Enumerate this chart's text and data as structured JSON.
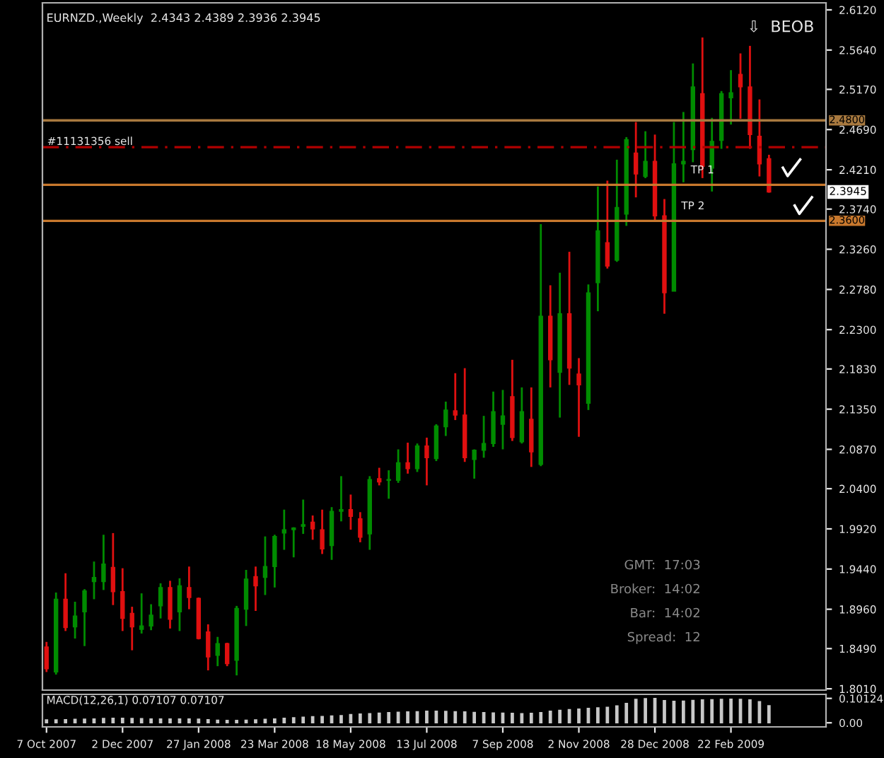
{
  "chart_data": [
    {
      "type": "candlestick",
      "title": "EURNZD.,Weekly  2.4343 2.4389 2.3936 2.3945",
      "x": [
        "2007-10-07",
        "2007-10-14",
        "2007-10-21",
        "2007-10-28",
        "2007-11-04",
        "2007-11-11",
        "2007-11-18",
        "2007-11-25",
        "2007-12-02",
        "2007-12-09",
        "2007-12-16",
        "2007-12-23",
        "2007-12-30",
        "2008-01-06",
        "2008-01-13",
        "2008-01-20",
        "2008-01-27",
        "2008-02-03",
        "2008-02-10",
        "2008-02-17",
        "2008-02-24",
        "2008-03-02",
        "2008-03-09",
        "2008-03-16",
        "2008-03-23",
        "2008-03-30",
        "2008-04-06",
        "2008-04-13",
        "2008-04-20",
        "2008-04-27",
        "2008-05-04",
        "2008-05-11",
        "2008-05-18",
        "2008-05-25",
        "2008-06-01",
        "2008-06-08",
        "2008-06-15",
        "2008-06-22",
        "2008-06-29",
        "2008-07-06",
        "2008-07-13",
        "2008-07-20",
        "2008-07-27",
        "2008-08-03",
        "2008-08-10",
        "2008-08-17",
        "2008-08-24",
        "2008-08-31",
        "2008-09-07",
        "2008-09-14",
        "2008-09-21",
        "2008-09-28",
        "2008-10-05",
        "2008-10-12",
        "2008-10-19",
        "2008-10-26",
        "2008-11-02",
        "2008-11-09",
        "2008-11-16",
        "2008-11-23",
        "2008-11-30",
        "2008-12-07",
        "2008-12-14",
        "2008-12-21",
        "2008-12-28",
        "2009-01-04",
        "2009-01-11",
        "2009-01-18",
        "2009-01-25",
        "2009-02-01",
        "2009-02-08",
        "2009-02-15",
        "2009-02-22",
        "2009-03-01",
        "2009-03-08",
        "2009-03-15",
        "2009-03-22"
      ],
      "ohlc": [
        [
          1.851,
          1.857,
          1.821,
          1.825
        ],
        [
          1.821,
          1.916,
          1.818,
          1.908
        ],
        [
          1.908,
          1.939,
          1.87,
          1.874
        ],
        [
          1.875,
          1.905,
          1.861,
          1.888
        ],
        [
          1.893,
          1.92,
          1.852,
          1.918
        ],
        [
          1.929,
          1.953,
          1.908,
          1.934
        ],
        [
          1.929,
          1.985,
          1.919,
          1.95
        ],
        [
          1.946,
          1.987,
          1.901,
          1.917
        ],
        [
          1.917,
          1.945,
          1.87,
          1.885
        ],
        [
          1.891,
          1.899,
          1.847,
          1.875
        ],
        [
          1.872,
          1.915,
          1.867,
          1.876
        ],
        [
          1.876,
          1.902,
          1.871,
          1.889
        ],
        [
          1.9,
          1.927,
          1.885,
          1.922
        ],
        [
          1.922,
          1.93,
          1.873,
          1.884
        ],
        [
          1.893,
          1.933,
          1.87,
          1.924
        ],
        [
          1.922,
          1.947,
          1.896,
          1.91
        ],
        [
          1.909,
          1.91,
          1.86,
          1.861
        ],
        [
          1.869,
          1.878,
          1.823,
          1.839
        ],
        [
          1.841,
          1.863,
          1.828,
          1.855
        ],
        [
          1.855,
          1.856,
          1.828,
          1.831
        ],
        [
          1.835,
          1.9,
          1.817,
          1.897
        ],
        [
          1.896,
          1.943,
          1.876,
          1.932
        ],
        [
          1.935,
          1.947,
          1.894,
          1.924
        ],
        [
          1.934,
          1.983,
          1.913,
          1.947
        ],
        [
          1.947,
          1.985,
          1.922,
          1.983
        ],
        [
          1.987,
          2.015,
          1.967,
          1.991
        ],
        [
          1.991,
          1.994,
          1.958,
          1.993
        ],
        [
          1.995,
          2.027,
          1.986,
          1.997
        ],
        [
          2.0,
          2.008,
          1.979,
          1.992
        ],
        [
          1.991,
          2.015,
          1.962,
          1.968
        ],
        [
          1.972,
          2.018,
          1.955,
          2.013
        ],
        [
          2.013,
          2.055,
          2.001,
          2.015
        ],
        [
          2.015,
          2.033,
          1.991,
          2.007
        ],
        [
          2.004,
          2.012,
          1.976,
          1.982
        ],
        [
          1.986,
          2.055,
          1.967,
          2.051
        ],
        [
          2.052,
          2.065,
          2.044,
          2.048
        ],
        [
          2.05,
          2.062,
          2.028,
          2.051
        ],
        [
          2.05,
          2.087,
          2.047,
          2.071
        ],
        [
          2.071,
          2.095,
          2.058,
          2.064
        ],
        [
          2.064,
          2.094,
          2.06,
          2.091
        ],
        [
          2.091,
          2.101,
          2.044,
          2.077
        ],
        [
          2.076,
          2.117,
          2.073,
          2.115
        ],
        [
          2.114,
          2.144,
          2.103,
          2.134
        ],
        [
          2.133,
          2.178,
          2.122,
          2.128
        ],
        [
          2.128,
          2.184,
          2.072,
          2.077
        ],
        [
          2.075,
          2.087,
          2.052,
          2.086
        ],
        [
          2.086,
          2.127,
          2.077,
          2.094
        ],
        [
          2.094,
          2.156,
          2.09,
          2.132
        ],
        [
          2.117,
          2.158,
          2.087,
          2.127
        ],
        [
          2.15,
          2.194,
          2.097,
          2.101
        ],
        [
          2.096,
          2.161,
          2.094,
          2.132
        ],
        [
          2.123,
          2.161,
          2.066,
          2.084
        ],
        [
          2.069,
          2.356,
          2.067,
          2.246
        ],
        [
          2.246,
          2.283,
          2.161,
          2.194
        ],
        [
          2.179,
          2.298,
          2.125,
          2.249
        ],
        [
          2.249,
          2.323,
          2.164,
          2.184
        ],
        [
          2.177,
          2.196,
          2.102,
          2.164
        ],
        [
          2.142,
          2.284,
          2.134,
          2.274
        ],
        [
          2.286,
          2.401,
          2.252,
          2.348
        ],
        [
          2.334,
          2.408,
          2.303,
          2.306
        ],
        [
          2.313,
          2.433,
          2.311,
          2.376
        ],
        [
          2.368,
          2.46,
          2.354,
          2.457
        ],
        [
          2.441,
          2.478,
          2.388,
          2.416
        ],
        [
          2.413,
          2.467,
          2.411,
          2.431
        ],
        [
          2.431,
          2.463,
          2.36,
          2.366
        ],
        [
          2.366,
          2.386,
          2.249,
          2.274
        ],
        [
          2.276,
          2.478,
          2.276,
          2.428
        ],
        [
          2.428,
          2.49,
          2.406,
          2.431
        ],
        [
          2.445,
          2.548,
          2.43,
          2.52
        ],
        [
          2.512,
          2.579,
          2.411,
          2.425
        ],
        [
          2.423,
          2.483,
          2.395,
          2.455
        ],
        [
          2.456,
          2.515,
          2.446,
          2.512
        ],
        [
          2.507,
          2.54,
          2.475,
          2.513
        ],
        [
          2.535,
          2.56,
          2.482,
          2.52
        ],
        [
          2.52,
          2.569,
          2.446,
          2.463
        ],
        [
          2.461,
          2.505,
          2.413,
          2.428
        ],
        [
          2.4343,
          2.4389,
          2.3936,
          2.3945
        ]
      ],
      "colors": [
        "#e01010",
        "#008c00",
        "#e01010",
        "#008c00",
        "#008c00",
        "#008c00",
        "#008c00",
        "#e01010",
        "#e01010",
        "#e01010",
        "#008c00",
        "#008c00",
        "#008c00",
        "#e01010",
        "#008c00",
        "#e01010",
        "#e01010",
        "#e01010",
        "#008c00",
        "#e01010",
        "#008c00",
        "#008c00",
        "#e01010",
        "#008c00",
        "#008c00",
        "#008c00",
        "#008c00",
        "#008c00",
        "#e01010",
        "#e01010",
        "#008c00",
        "#008c00",
        "#e01010",
        "#e01010",
        "#008c00",
        "#e01010",
        "#008c00",
        "#008c00",
        "#e01010",
        "#008c00",
        "#e01010",
        "#008c00",
        "#008c00",
        "#e01010",
        "#e01010",
        "#008c00",
        "#008c00",
        "#008c00",
        "#008c00",
        "#e01010",
        "#008c00",
        "#e01010",
        "#008c00",
        "#e01010",
        "#008c00",
        "#e01010",
        "#e01010",
        "#008c00",
        "#008c00",
        "#e01010",
        "#008c00",
        "#008c00",
        "#e01010",
        "#008c00",
        "#e01010",
        "#e01010",
        "#008c00",
        "#008c00",
        "#008c00",
        "#e01010",
        "#008c00",
        "#008c00",
        "#008c00",
        "#e01010",
        "#e01010",
        "#e01010",
        "#e01010"
      ],
      "xlim": [
        "2007-10-04",
        "2009-05-03"
      ],
      "ylim": [
        1.7994,
        2.6204
      ],
      "yticks": [
        {
          "value": 1.801,
          "label": "1.8010"
        },
        {
          "value": 1.849,
          "label": "1.8490"
        },
        {
          "value": 1.896,
          "label": "1.8960"
        },
        {
          "value": 1.944,
          "label": "1.9440"
        },
        {
          "value": 1.992,
          "label": "1.9920"
        },
        {
          "value": 2.04,
          "label": "2.0400"
        },
        {
          "value": 2.087,
          "label": "2.0870"
        },
        {
          "value": 2.135,
          "label": "2.1350"
        },
        {
          "value": 2.183,
          "label": "2.1830"
        },
        {
          "value": 2.23,
          "label": "2.2300"
        },
        {
          "value": 2.278,
          "label": "2.2780"
        },
        {
          "value": 2.326,
          "label": "2.3260"
        },
        {
          "value": 2.374,
          "label": "2.3740"
        },
        {
          "value": 2.421,
          "label": "2.4210"
        },
        {
          "value": 2.469,
          "label": "2.4690"
        },
        {
          "value": 2.517,
          "label": "2.5170"
        },
        {
          "value": 2.564,
          "label": "2.5640"
        },
        {
          "value": 2.612,
          "label": "2.6120"
        }
      ],
      "tick_labels": "y",
      "grid": false,
      "legend": false,
      "ref_lines": [
        {
          "axis": "y",
          "value": 2.48,
          "label": "2.4800",
          "color": "#a8793f"
        },
        {
          "axis": "y",
          "value": 2.448,
          "label": "#11131356 sell",
          "color": "#b00000",
          "line_style": "dashed"
        },
        {
          "axis": "y",
          "value": 2.403,
          "color": "#c8782d"
        },
        {
          "axis": "y",
          "value": 2.36,
          "label": "2.3600",
          "color": "#c8782d"
        }
      ],
      "annotations": [
        "⇩  BEOB",
        "GMT:  17:03",
        "Broker:  14:02",
        "Bar:  14:02",
        "Spread:  12",
        {
          "text": "TP 1",
          "x": "2009-02-01",
          "y": 2.407
        },
        {
          "text": "TP 2",
          "x": "2009-01-25",
          "y": 2.364
        },
        {
          "text": "2.3945",
          "y": 2.3945
        }
      ]
    },
    {
      "type": "bar",
      "title": "MACD(12,26,1) 0.07107 0.07107",
      "x": [
        "2007-10-07",
        "2007-10-14",
        "2007-10-21",
        "2007-10-28",
        "2007-11-04",
        "2007-11-11",
        "2007-11-18",
        "2007-11-25",
        "2007-12-02",
        "2007-12-09",
        "2007-12-16",
        "2007-12-23",
        "2007-12-30",
        "2008-01-06",
        "2008-01-13",
        "2008-01-20",
        "2008-01-27",
        "2008-02-03",
        "2008-02-10",
        "2008-02-17",
        "2008-02-24",
        "2008-03-02",
        "2008-03-09",
        "2008-03-16",
        "2008-03-23",
        "2008-03-30",
        "2008-04-06",
        "2008-04-13",
        "2008-04-20",
        "2008-04-27",
        "2008-05-04",
        "2008-05-11",
        "2008-05-18",
        "2008-05-25",
        "2008-06-01",
        "2008-06-08",
        "2008-06-15",
        "2008-06-22",
        "2008-06-29",
        "2008-07-06",
        "2008-07-13",
        "2008-07-20",
        "2008-07-27",
        "2008-08-03",
        "2008-08-10",
        "2008-08-17",
        "2008-08-24",
        "2008-08-31",
        "2008-09-07",
        "2008-09-14",
        "2008-09-21",
        "2008-09-28",
        "2008-10-05",
        "2008-10-12",
        "2008-10-19",
        "2008-10-26",
        "2008-11-02",
        "2008-11-09",
        "2008-11-16",
        "2008-11-23",
        "2008-11-30",
        "2008-12-07",
        "2008-12-14",
        "2008-12-21",
        "2008-12-28",
        "2009-01-04",
        "2009-01-11",
        "2009-01-18",
        "2009-01-25",
        "2009-02-01",
        "2009-02-08",
        "2009-02-15",
        "2009-02-22",
        "2009-03-01",
        "2009-03-08",
        "2009-03-15",
        "2009-03-22"
      ],
      "values": [
        0.012,
        0.012,
        0.013,
        0.014,
        0.015,
        0.016,
        0.018,
        0.019,
        0.019,
        0.018,
        0.017,
        0.016,
        0.016,
        0.016,
        0.016,
        0.016,
        0.015,
        0.013,
        0.011,
        0.01,
        0.01,
        0.011,
        0.012,
        0.014,
        0.016,
        0.019,
        0.021,
        0.023,
        0.025,
        0.026,
        0.028,
        0.03,
        0.034,
        0.036,
        0.038,
        0.04,
        0.042,
        0.044,
        0.045,
        0.046,
        0.048,
        0.048,
        0.047,
        0.046,
        0.045,
        0.043,
        0.042,
        0.041,
        0.04,
        0.039,
        0.038,
        0.039,
        0.042,
        0.048,
        0.052,
        0.055,
        0.057,
        0.06,
        0.062,
        0.064,
        0.07,
        0.08,
        0.097,
        0.1,
        0.101,
        0.092,
        0.089,
        0.09,
        0.093,
        0.095,
        0.096,
        0.097,
        0.098,
        0.097,
        0.095,
        0.088,
        0.071
      ],
      "color": "#c8c8c8",
      "xlim": [
        "2007-10-04",
        "2009-05-03"
      ],
      "ylim": [
        -0.017,
        0.118
      ],
      "yticks": [
        {
          "value": 0.10124,
          "label": "0.10124"
        },
        {
          "value": 0,
          "label": "0.00"
        }
      ],
      "xticks": [
        {
          "value": "2007-10-07",
          "label": "7 Oct 2007"
        },
        {
          "value": "2007-12-02",
          "label": "2 Dec 2007"
        },
        {
          "value": "2008-01-27",
          "label": "27 Jan 2008"
        },
        {
          "value": "2008-03-23",
          "label": "23 Mar 2008"
        },
        {
          "value": "2008-05-18",
          "label": "18 May 2008"
        },
        {
          "value": "2008-07-13",
          "label": "13 Jul 2008"
        },
        {
          "value": "2008-09-07",
          "label": "7 Sep 2008"
        },
        {
          "value": "2008-11-02",
          "label": "2 Nov 2008"
        },
        {
          "value": "2008-12-28",
          "label": "28 Dec 2008"
        },
        {
          "value": "2009-02-22",
          "label": "22 Feb 2009"
        }
      ],
      "grid": false,
      "legend": false
    }
  ]
}
